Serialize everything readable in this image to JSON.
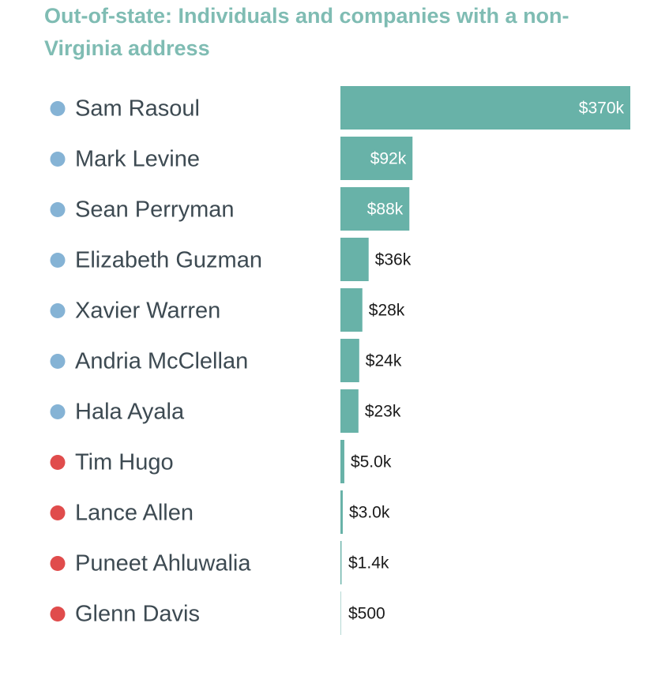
{
  "chart_data": {
    "type": "bar",
    "orientation": "horizontal",
    "title": "Out-of-state: Individuals and companies with a non-Virginia address",
    "categories": [
      "Sam Rasoul",
      "Mark Levine",
      "Sean Perryman",
      "Elizabeth Guzman",
      "Xavier Warren",
      "Andria McClellan",
      "Hala Ayala",
      "Tim Hugo",
      "Lance Allen",
      "Puneet Ahluwalia",
      "Glenn Davis"
    ],
    "values": [
      370000,
      92000,
      88000,
      36000,
      28000,
      24000,
      23000,
      5000,
      3000,
      1400,
      500
    ],
    "value_labels": [
      "$370k",
      "$92k",
      "$88k",
      "$36k",
      "$28k",
      "$24k",
      "$23k",
      "$5.0k",
      "$3.0k",
      "$1.4k",
      "$500"
    ],
    "party": [
      "Democrat",
      "Democrat",
      "Democrat",
      "Democrat",
      "Democrat",
      "Democrat",
      "Democrat",
      "Republican",
      "Republican",
      "Republican",
      "Republican"
    ],
    "xlim": [
      0,
      370000
    ],
    "grid": false,
    "legend": "none"
  },
  "colors": {
    "bar": "#68b2a8",
    "title": "#7fbcb3",
    "democrat": "#85b3d5",
    "republican": "#e04c4c",
    "name_text": "#3d4a52",
    "label_inside": "#ffffff",
    "label_outside": "#1a1a1a"
  }
}
